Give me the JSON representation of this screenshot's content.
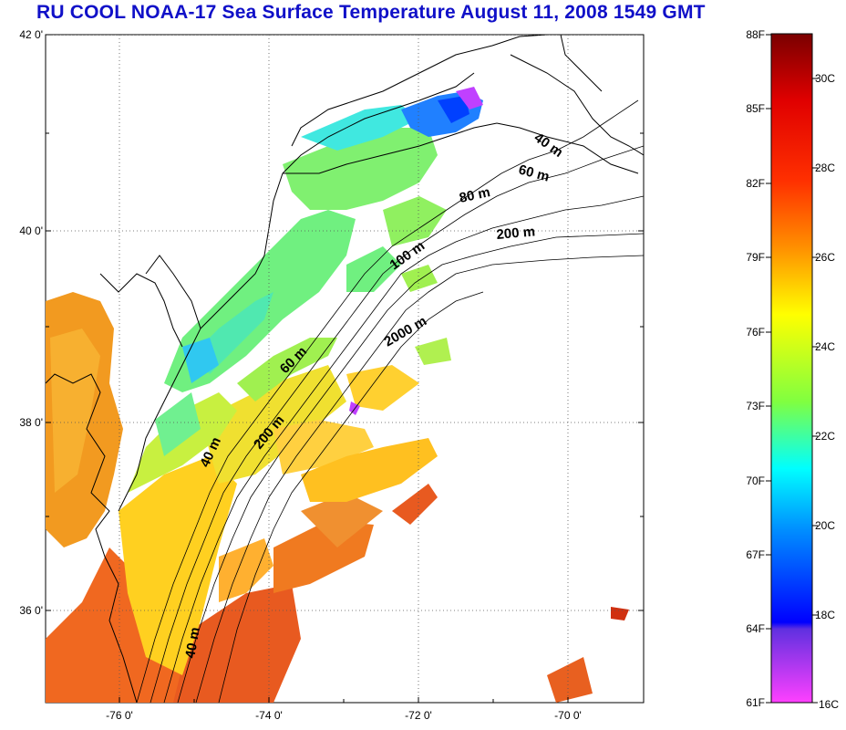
{
  "title": "RU COOL  NOAA-17 Sea Surface Temperature August 11, 2008 1549 GMT",
  "map": {
    "lat_labels": [
      "42 0'",
      "40 0'",
      "38 0'",
      "36 0'"
    ],
    "lon_labels": [
      "-76 0'",
      "-74 0'",
      "-72 0'",
      "-70 0'"
    ],
    "isobath_labels": [
      "40 m",
      "60 m",
      "80 m",
      "200 m",
      "100 m",
      "2000 m",
      "60 m",
      "200 m",
      "40 m",
      "40 m"
    ]
  },
  "colorbar": {
    "fahrenheit_labels": [
      "88F",
      "85F",
      "82F",
      "79F",
      "76F",
      "73F",
      "70F",
      "67F",
      "64F",
      "61F"
    ],
    "celsius_labels": [
      "30C",
      "28C",
      "26C",
      "24C",
      "22C",
      "20C",
      "18C",
      "16C"
    ],
    "colors": [
      "#7a0000",
      "#ff0000",
      "#ff8000",
      "#ffff00",
      "#80ff40",
      "#00ffff",
      "#0080ff",
      "#0000ff",
      "#8040ff",
      "#ff40ff"
    ]
  }
}
